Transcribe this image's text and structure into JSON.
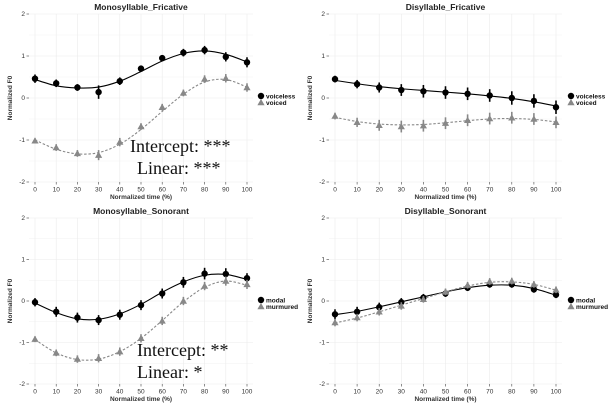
{
  "chart_data": [
    {
      "type": "line",
      "title": "Monosyllable_Fricative",
      "xlabel": "Normalized time (%)",
      "ylabel": "Normalized F0",
      "x": [
        0,
        10,
        20,
        30,
        40,
        50,
        60,
        70,
        80,
        90,
        100
      ],
      "xticks": [
        0,
        10,
        20,
        30,
        40,
        50,
        60,
        70,
        80,
        90,
        100
      ],
      "ylim": [
        -2,
        2
      ],
      "yticks": [
        -2,
        -1,
        0,
        1,
        2
      ],
      "grid": true,
      "legend_position": "right",
      "series": [
        {
          "name": "voiceless",
          "style": "solid",
          "marker": "circle",
          "color": "#000000",
          "values": [
            0.46,
            0.35,
            0.25,
            0.14,
            0.4,
            0.7,
            0.95,
            1.08,
            1.14,
            0.98,
            0.85
          ],
          "err": [
            0.1,
            0.09,
            0.08,
            0.16,
            0.09,
            0.07,
            0.07,
            0.09,
            0.1,
            0.11,
            0.12
          ],
          "fit": [
            0.44,
            0.29,
            0.24,
            0.26,
            0.4,
            0.63,
            0.88,
            1.06,
            1.12,
            1.04,
            0.86
          ]
        },
        {
          "name": "voiced",
          "style": "dashed",
          "marker": "triangle",
          "color": "#888888",
          "values": [
            -1.02,
            -1.18,
            -1.32,
            -1.36,
            -1.05,
            -0.68,
            -0.22,
            0.12,
            0.45,
            0.47,
            0.25
          ],
          "err": [
            0.06,
            0.08,
            0.08,
            0.12,
            0.1,
            0.08,
            0.08,
            0.08,
            0.09,
            0.1,
            0.1
          ],
          "fit": [
            -1.0,
            -1.22,
            -1.33,
            -1.3,
            -1.1,
            -0.75,
            -0.32,
            0.09,
            0.38,
            0.44,
            0.26
          ]
        }
      ],
      "annotations": [
        "Intercept: ***",
        "Linear: ***"
      ]
    },
    {
      "type": "line",
      "title": "Disyllable_Fricative",
      "xlabel": "Normalized time (%)",
      "ylabel": "Normalized F0",
      "x": [
        0,
        10,
        20,
        30,
        40,
        50,
        60,
        70,
        80,
        90,
        100
      ],
      "xticks": [
        0,
        10,
        20,
        30,
        40,
        50,
        60,
        70,
        80,
        90,
        100
      ],
      "ylim": [
        -2,
        2
      ],
      "yticks": [
        -2,
        -1,
        0,
        1,
        2
      ],
      "grid": true,
      "legend_position": "right",
      "series": [
        {
          "name": "voiceless",
          "style": "solid",
          "marker": "circle",
          "color": "#000000",
          "values": [
            0.45,
            0.33,
            0.25,
            0.19,
            0.16,
            0.13,
            0.1,
            0.06,
            0.0,
            -0.07,
            -0.22
          ],
          "err": [
            0.08,
            0.1,
            0.12,
            0.14,
            0.15,
            0.15,
            0.15,
            0.15,
            0.16,
            0.16,
            0.16
          ],
          "fit": [
            0.42,
            0.34,
            0.27,
            0.22,
            0.18,
            0.14,
            0.1,
            0.05,
            -0.01,
            -0.09,
            -0.19
          ]
        },
        {
          "name": "voiced",
          "style": "dashed",
          "marker": "triangle",
          "color": "#888888",
          "values": [
            -0.43,
            -0.58,
            -0.65,
            -0.68,
            -0.66,
            -0.6,
            -0.53,
            -0.49,
            -0.47,
            -0.5,
            -0.58
          ],
          "err": [
            0.08,
            0.11,
            0.13,
            0.14,
            0.14,
            0.14,
            0.14,
            0.14,
            0.14,
            0.14,
            0.14
          ],
          "fit": [
            -0.46,
            -0.56,
            -0.62,
            -0.64,
            -0.63,
            -0.59,
            -0.54,
            -0.5,
            -0.49,
            -0.51,
            -0.57
          ]
        }
      ]
    },
    {
      "type": "line",
      "title": "Monosyllable_Sonorant",
      "xlabel": "Normalized time (%)",
      "ylabel": "Normalized F0",
      "x": [
        0,
        10,
        20,
        30,
        40,
        50,
        60,
        70,
        80,
        90,
        100
      ],
      "xticks": [
        0,
        10,
        20,
        30,
        40,
        50,
        60,
        70,
        80,
        90,
        100
      ],
      "ylim": [
        -2,
        2
      ],
      "yticks": [
        -2,
        -1,
        0,
        1,
        2
      ],
      "grid": true,
      "legend_position": "right",
      "series": [
        {
          "name": "modal",
          "style": "solid",
          "marker": "circle",
          "color": "#000000",
          "values": [
            -0.03,
            -0.26,
            -0.4,
            -0.46,
            -0.33,
            -0.1,
            0.18,
            0.45,
            0.66,
            0.65,
            0.55
          ],
          "err": [
            0.1,
            0.12,
            0.12,
            0.12,
            0.12,
            0.12,
            0.12,
            0.13,
            0.14,
            0.14,
            0.12
          ],
          "fit": [
            -0.05,
            -0.28,
            -0.43,
            -0.44,
            -0.31,
            -0.08,
            0.21,
            0.46,
            0.62,
            0.64,
            0.52
          ]
        },
        {
          "name": "murmured",
          "style": "dashed",
          "marker": "triangle",
          "color": "#888888",
          "values": [
            -0.92,
            -1.25,
            -1.4,
            -1.38,
            -1.22,
            -0.9,
            -0.48,
            0.0,
            0.36,
            0.48,
            0.4
          ],
          "err": [
            0.07,
            0.08,
            0.09,
            0.1,
            0.1,
            0.1,
            0.1,
            0.1,
            0.1,
            0.11,
            0.11
          ],
          "fit": [
            -0.93,
            -1.25,
            -1.41,
            -1.4,
            -1.22,
            -0.9,
            -0.47,
            -0.02,
            0.33,
            0.48,
            0.38
          ]
        }
      ],
      "annotations": [
        "Intercept: **",
        "Linear: *"
      ]
    },
    {
      "type": "line",
      "title": "Disyllable_Sonorant",
      "xlabel": "Normalized time (%)",
      "ylabel": "Normalized F0",
      "x": [
        0,
        10,
        20,
        30,
        40,
        50,
        60,
        70,
        80,
        90,
        100
      ],
      "xticks": [
        0,
        10,
        20,
        30,
        40,
        50,
        60,
        70,
        80,
        90,
        100
      ],
      "ylim": [
        -2,
        2
      ],
      "yticks": [
        -2,
        -1,
        0,
        1,
        2
      ],
      "grid": true,
      "legend_position": "right",
      "series": [
        {
          "name": "modal",
          "style": "solid",
          "marker": "circle",
          "color": "#000000",
          "values": [
            -0.32,
            -0.26,
            -0.15,
            -0.03,
            0.08,
            0.18,
            0.32,
            0.4,
            0.4,
            0.28,
            0.15
          ],
          "err": [
            0.12,
            0.12,
            0.11,
            0.1,
            0.09,
            0.08,
            0.08,
            0.08,
            0.08,
            0.08,
            0.08
          ],
          "fit": [
            -0.33,
            -0.25,
            -0.14,
            -0.02,
            0.1,
            0.22,
            0.32,
            0.38,
            0.38,
            0.3,
            0.14
          ]
        },
        {
          "name": "murmured",
          "style": "dashed",
          "marker": "triangle",
          "color": "#888888",
          "values": [
            -0.52,
            -0.4,
            -0.26,
            -0.12,
            0.04,
            0.22,
            0.38,
            0.47,
            0.48,
            0.4,
            0.27
          ],
          "err": [
            0.09,
            0.09,
            0.09,
            0.09,
            0.08,
            0.08,
            0.08,
            0.08,
            0.08,
            0.08,
            0.08
          ],
          "fit": [
            -0.53,
            -0.41,
            -0.26,
            -0.1,
            0.06,
            0.22,
            0.36,
            0.45,
            0.46,
            0.4,
            0.26
          ]
        }
      ]
    }
  ]
}
